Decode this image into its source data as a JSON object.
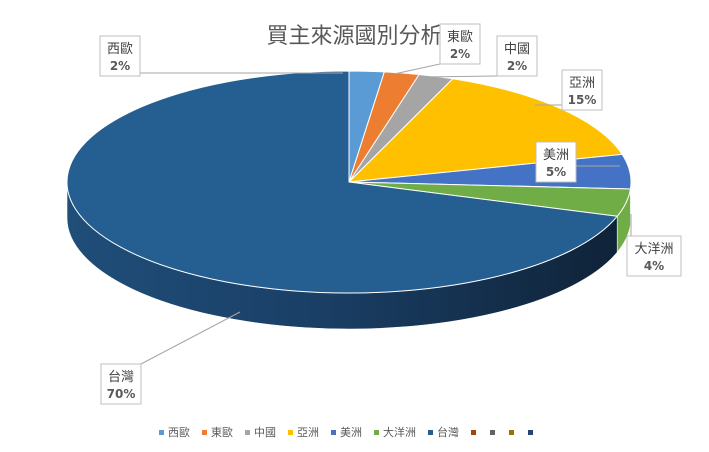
{
  "chart_data": {
    "type": "pie",
    "title": "買主來源國別分析",
    "categories": [
      "西歐",
      "東歐",
      "中國",
      "亞洲",
      "美洲",
      "大洋洲",
      "台灣"
    ],
    "values": [
      2,
      2,
      2,
      15,
      5,
      4,
      70
    ],
    "data_labels": [
      "2%",
      "2%",
      "2%",
      "15%",
      "5%",
      "4%",
      "70%"
    ],
    "colors": [
      "#5B9BD5",
      "#ED7D31",
      "#A5A5A5",
      "#FFC000",
      "#4472C4",
      "#70AD47",
      "#255E91"
    ],
    "legend": {
      "position": "bottom",
      "entries": [
        "西歐",
        "東歐",
        "中國",
        "亞洲",
        "美洲",
        "大洋洲",
        "台灣",
        "",
        "",
        "",
        ""
      ],
      "extra_marker_colors": [
        "#9E480E",
        "#636363",
        "#997300",
        "#264478"
      ]
    },
    "three_d": true
  }
}
